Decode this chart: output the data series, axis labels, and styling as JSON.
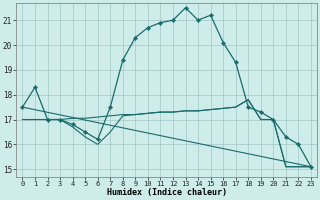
{
  "xlabel": "Humidex (Indice chaleur)",
  "background_color": "#ceecea",
  "grid_color": "#aacccc",
  "line_color": "#1a6b6b",
  "xlim": [
    -0.5,
    23.5
  ],
  "ylim": [
    14.7,
    21.7
  ],
  "yticks": [
    15,
    16,
    17,
    18,
    19,
    20,
    21
  ],
  "xticks": [
    0,
    1,
    2,
    3,
    4,
    5,
    6,
    7,
    8,
    9,
    10,
    11,
    12,
    13,
    14,
    15,
    16,
    17,
    18,
    19,
    20,
    21,
    22,
    23
  ],
  "series_main": {
    "x": [
      0,
      1,
      2,
      3,
      4,
      5,
      6,
      7,
      8,
      9,
      10,
      11,
      12,
      13,
      14,
      15,
      16,
      17,
      18,
      19,
      20,
      21,
      22,
      23
    ],
    "y": [
      17.5,
      18.3,
      17.0,
      17.0,
      16.8,
      16.5,
      16.2,
      17.5,
      19.4,
      20.3,
      20.7,
      20.9,
      21.0,
      21.5,
      21.0,
      21.2,
      20.1,
      19.3,
      17.5,
      17.3,
      17.0,
      16.3,
      16.0,
      15.1
    ]
  },
  "series_flat_upper": {
    "x": [
      0,
      1,
      2,
      3,
      4,
      5,
      6,
      7,
      8,
      9,
      10,
      11,
      12,
      13,
      14,
      15,
      16,
      17,
      18,
      19,
      20,
      21,
      22,
      23
    ],
    "y": [
      17.0,
      17.0,
      17.0,
      17.0,
      17.05,
      17.05,
      17.1,
      17.15,
      17.2,
      17.2,
      17.25,
      17.3,
      17.3,
      17.35,
      17.35,
      17.4,
      17.45,
      17.5,
      17.8,
      17.0,
      17.0,
      15.1,
      15.1,
      15.1
    ]
  },
  "series_flat_lower": {
    "x": [
      0,
      1,
      2,
      3,
      4,
      5,
      6,
      7,
      8,
      9,
      10,
      11,
      12,
      13,
      14,
      15,
      16,
      17,
      18,
      19,
      20,
      21,
      22,
      23
    ],
    "y": [
      17.0,
      17.0,
      17.0,
      17.0,
      16.7,
      16.3,
      16.0,
      16.5,
      17.15,
      17.2,
      17.25,
      17.3,
      17.3,
      17.35,
      17.35,
      17.4,
      17.45,
      17.5,
      17.8,
      17.0,
      17.0,
      15.1,
      15.1,
      15.1
    ]
  },
  "series_descend": {
    "x": [
      0,
      23
    ],
    "y": [
      17.5,
      15.1
    ]
  }
}
